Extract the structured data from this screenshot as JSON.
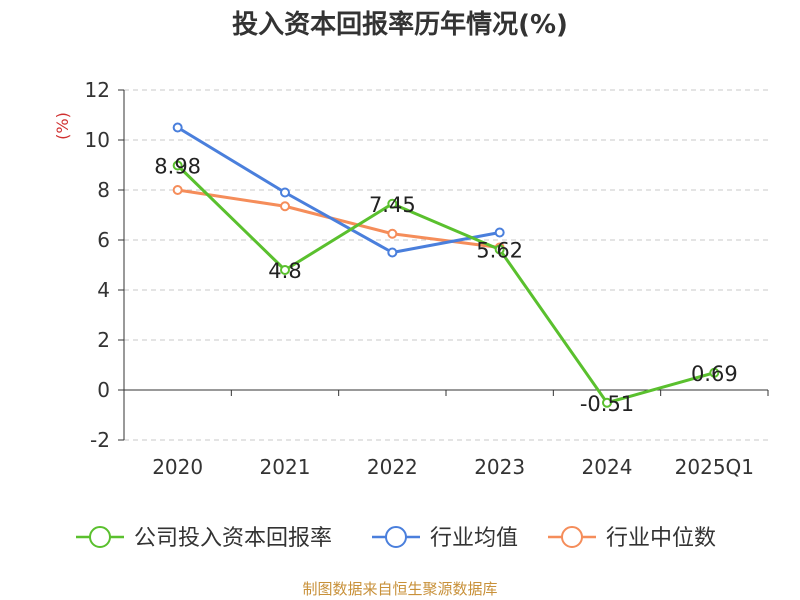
{
  "chart_data": {
    "type": "line",
    "title": "投入资本回报率历年情况(%)",
    "ylabel": "(%)",
    "xlabel": "",
    "categories": [
      "2020",
      "2021",
      "2022",
      "2023",
      "2024",
      "2025Q1"
    ],
    "ylim": [
      -2,
      12
    ],
    "yticks": [
      -2,
      0,
      2,
      4,
      6,
      8,
      10,
      12
    ],
    "grid": true,
    "legend_position": "bottom",
    "series": [
      {
        "name": "公司投入资本回报率",
        "color": "#5ac02e",
        "values": [
          8.98,
          4.8,
          7.45,
          5.62,
          -0.51,
          0.69
        ],
        "show_labels": true
      },
      {
        "name": "行业均值",
        "color": "#4a7fdc",
        "values": [
          10.5,
          7.9,
          5.5,
          6.3,
          null,
          null
        ],
        "show_labels": false
      },
      {
        "name": "行业中位数",
        "color": "#f58d5a",
        "values": [
          8.0,
          7.35,
          6.25,
          5.7,
          null,
          null
        ],
        "show_labels": false
      }
    ],
    "labels": [
      "8.98",
      "4.8",
      "7.45",
      "5.62",
      "-0.51",
      "0.69"
    ]
  },
  "source": "制图数据来自恒生聚源数据库"
}
